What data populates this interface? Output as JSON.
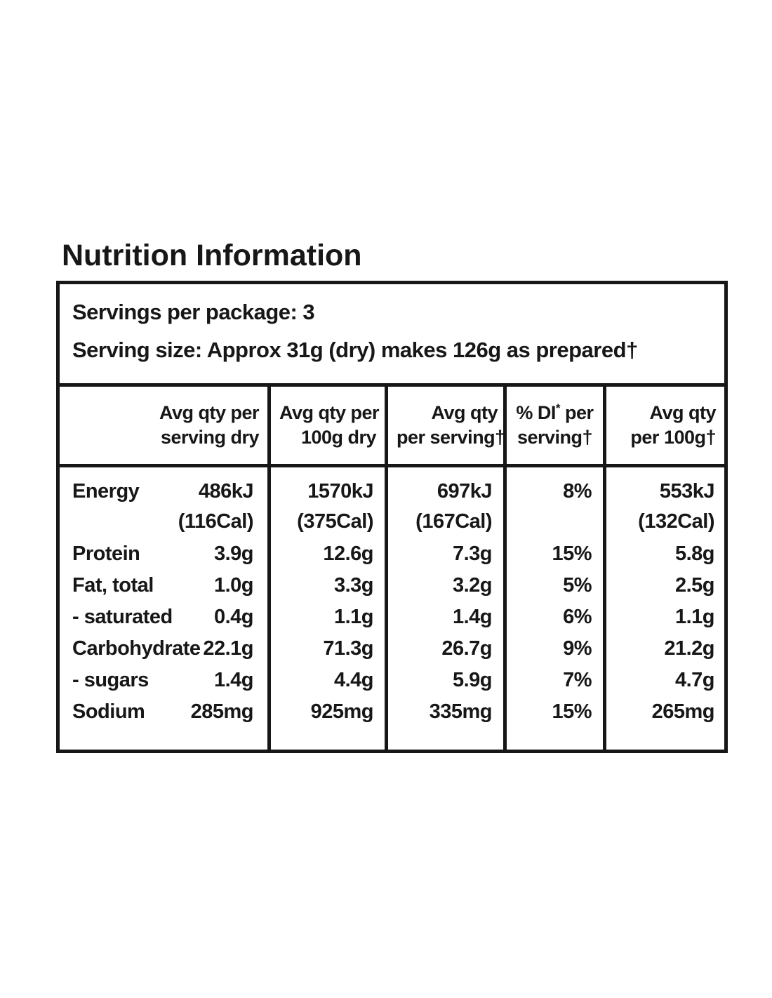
{
  "page": {
    "title": "Nutrition Information"
  },
  "panel": {
    "servings_line": "Servings per package: 3",
    "serving_size_line": "Serving size: Approx 31g (dry) makes 126g as prepared†"
  },
  "columns": [
    {
      "line1": "Avg qty per",
      "line2": "serving dry"
    },
    {
      "line1": "Avg qty per",
      "line2": "100g dry"
    },
    {
      "line1": "Avg qty",
      "line2": "per serving†"
    },
    {
      "line1_pre": "% DI",
      "line1_sup": "*",
      "line1_post": " per",
      "line2": "serving†"
    },
    {
      "line1": "Avg qty",
      "line2": "per 100g†"
    }
  ],
  "rows": [
    {
      "label": "Energy",
      "serving_dry": "486kJ",
      "serving_dry_cal": "(116Cal)",
      "dry_100g": "1570kJ",
      "dry_100g_cal": "(375Cal)",
      "per_serving": "697kJ",
      "per_serving_cal": "(167Cal)",
      "di_per_serving": "8%",
      "per_100g": "553kJ",
      "per_100g_cal": "(132Cal)"
    },
    {
      "label": "Protein",
      "serving_dry": "3.9g",
      "dry_100g": "12.6g",
      "per_serving": "7.3g",
      "di_per_serving": "15%",
      "per_100g": "5.8g"
    },
    {
      "label": "Fat, total",
      "serving_dry": "1.0g",
      "dry_100g": "3.3g",
      "per_serving": "3.2g",
      "di_per_serving": "5%",
      "per_100g": "2.5g"
    },
    {
      "label": "- saturated",
      "serving_dry": "0.4g",
      "dry_100g": "1.1g",
      "per_serving": "1.4g",
      "di_per_serving": "6%",
      "per_100g": "1.1g"
    },
    {
      "label": "Carbohydrate",
      "serving_dry": "22.1g",
      "dry_100g": "71.3g",
      "per_serving": "26.7g",
      "di_per_serving": "9%",
      "per_100g": "21.2g"
    },
    {
      "label": "- sugars",
      "serving_dry": "1.4g",
      "dry_100g": "4.4g",
      "per_serving": "5.9g",
      "di_per_serving": "7%",
      "per_100g": "4.7g"
    },
    {
      "label": "Sodium",
      "serving_dry": "285mg",
      "dry_100g": "925mg",
      "per_serving": "335mg",
      "di_per_serving": "15%",
      "per_100g": "265mg"
    }
  ]
}
